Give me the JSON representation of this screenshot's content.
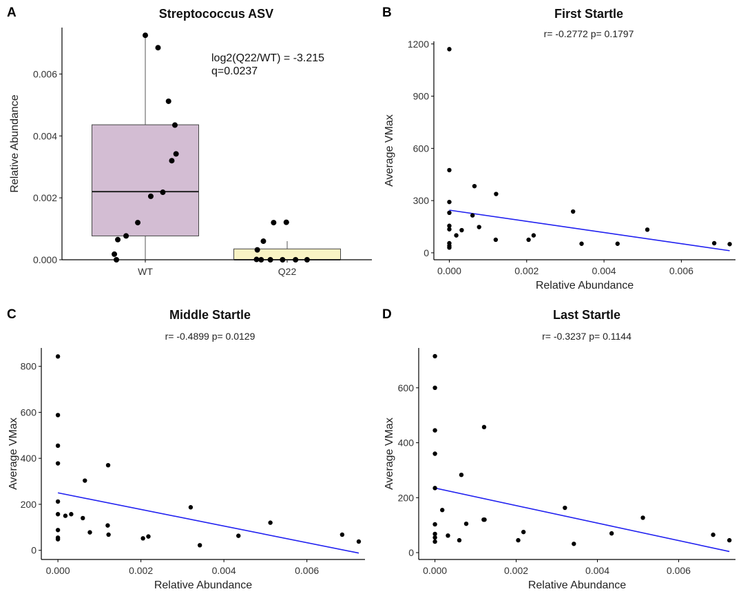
{
  "chart_data": [
    {
      "panel": "A",
      "type": "box",
      "title": "Streptococcus ASV",
      "xlabel": "",
      "ylabel": "Relative Abundance",
      "ylim": [
        0,
        0.0075
      ],
      "yticks": [
        0,
        0.002,
        0.004,
        0.006
      ],
      "ytick_labels": [
        "0.000",
        "0.002",
        "0.004",
        "0.006"
      ],
      "categories": [
        "WT",
        "Q22"
      ],
      "annotation": [
        "log2(Q22/WT) = -3.215",
        "q=0.0237"
      ],
      "colors": {
        "WT": "#d3bdd3",
        "Q22": "#f8f3c4"
      },
      "boxes": [
        {
          "category": "WT",
          "q1": 0.00077,
          "median": 0.0022,
          "q3": 0.00436,
          "whisker_low": 0.0,
          "whisker_high": 0.00725,
          "outliers": []
        },
        {
          "category": "Q22",
          "q1": 0.0,
          "median": 0.0,
          "q3": 0.00035,
          "whisker_low": 0.0,
          "whisker_high": 0.0006,
          "outliers": [
            0.00121
          ]
        }
      ],
      "points": {
        "WT": [
          0.00725,
          0.00685,
          0.00512,
          0.00435,
          0.00342,
          0.0032,
          0.00218,
          0.00205,
          0.0012,
          0.00077,
          0.00065,
          0.00018,
          0.0
        ],
        "Q22": [
          0.00121,
          0.0012,
          0.0006,
          0.00032,
          1e-05,
          0.0,
          0.0,
          0.0,
          0.0,
          0.0
        ]
      }
    },
    {
      "panel": "B",
      "type": "scatter",
      "title": "First Startle",
      "subtitle": "r= -0.2772 p= 0.1797",
      "xlabel": "Relative Abundance",
      "ylabel": "Average VMax",
      "xlim": [
        -0.0004,
        0.0074
      ],
      "ylim": [
        -40,
        1215
      ],
      "xticks": [
        0,
        0.002,
        0.004,
        0.006
      ],
      "xtick_labels": [
        "0.000",
        "0.002",
        "0.004",
        "0.006"
      ],
      "yticks": [
        0,
        300,
        600,
        900,
        1200
      ],
      "ytick_labels": [
        "0",
        "300",
        "600",
        "900",
        "1200"
      ],
      "regression": {
        "x": [
          0,
          0.00725
        ],
        "y": [
          245,
          12
        ],
        "color": "#1f1ff0"
      },
      "points": [
        {
          "x": 0.0,
          "y": 1170
        },
        {
          "x": 0.0,
          "y": 475
        },
        {
          "x": 0.0,
          "y": 292
        },
        {
          "x": 0.0,
          "y": 230
        },
        {
          "x": 0.0,
          "y": 155
        },
        {
          "x": 0.0,
          "y": 135
        },
        {
          "x": 0.0,
          "y": 55
        },
        {
          "x": 0.0,
          "y": 40
        },
        {
          "x": 0.0,
          "y": 30
        },
        {
          "x": 0.00018,
          "y": 100
        },
        {
          "x": 0.00032,
          "y": 130
        },
        {
          "x": 0.0006,
          "y": 215
        },
        {
          "x": 0.00065,
          "y": 383
        },
        {
          "x": 0.00077,
          "y": 148
        },
        {
          "x": 0.0012,
          "y": 75
        },
        {
          "x": 0.00121,
          "y": 338
        },
        {
          "x": 0.00205,
          "y": 75
        },
        {
          "x": 0.00218,
          "y": 100
        },
        {
          "x": 0.0032,
          "y": 237
        },
        {
          "x": 0.00342,
          "y": 52
        },
        {
          "x": 0.00435,
          "y": 52
        },
        {
          "x": 0.00512,
          "y": 133
        },
        {
          "x": 0.00685,
          "y": 55
        },
        {
          "x": 0.00725,
          "y": 50
        }
      ]
    },
    {
      "panel": "C",
      "type": "scatter",
      "title": "Middle Startle",
      "subtitle": "r= -0.4899 p= 0.0129",
      "xlabel": "Relative Abundance",
      "ylabel": "Average VMax",
      "xlim": [
        -0.0004,
        0.0074
      ],
      "ylim": [
        -40,
        880
      ],
      "xticks": [
        0,
        0.002,
        0.004,
        0.006
      ],
      "xtick_labels": [
        "0.000",
        "0.002",
        "0.004",
        "0.006"
      ],
      "yticks": [
        0,
        200,
        400,
        600,
        800
      ],
      "ytick_labels": [
        "0",
        "200",
        "400",
        "600",
        "800"
      ],
      "regression": {
        "x": [
          0,
          0.00725
        ],
        "y": [
          250,
          -12
        ],
        "color": "#1f1ff0"
      },
      "points": [
        {
          "x": 0.0,
          "y": 843
        },
        {
          "x": 0.0,
          "y": 588
        },
        {
          "x": 0.0,
          "y": 455
        },
        {
          "x": 0.0,
          "y": 378
        },
        {
          "x": 0.0,
          "y": 212
        },
        {
          "x": 0.0,
          "y": 157
        },
        {
          "x": 0.0,
          "y": 88
        },
        {
          "x": 0.0,
          "y": 55
        },
        {
          "x": 0.0,
          "y": 48
        },
        {
          "x": 0.00018,
          "y": 150
        },
        {
          "x": 0.00032,
          "y": 157
        },
        {
          "x": 0.0006,
          "y": 140
        },
        {
          "x": 0.00065,
          "y": 303
        },
        {
          "x": 0.00077,
          "y": 78
        },
        {
          "x": 0.0012,
          "y": 108
        },
        {
          "x": 0.00121,
          "y": 370
        },
        {
          "x": 0.00122,
          "y": 68
        },
        {
          "x": 0.00205,
          "y": 52
        },
        {
          "x": 0.00218,
          "y": 60
        },
        {
          "x": 0.0032,
          "y": 187
        },
        {
          "x": 0.00342,
          "y": 22
        },
        {
          "x": 0.00435,
          "y": 63
        },
        {
          "x": 0.00512,
          "y": 120
        },
        {
          "x": 0.00685,
          "y": 68
        },
        {
          "x": 0.00725,
          "y": 38
        }
      ]
    },
    {
      "panel": "D",
      "type": "scatter",
      "title": "Last Startle",
      "subtitle": "r= -0.3237 p= 0.1144",
      "xlabel": "Relative Abundance",
      "ylabel": "Average VMax",
      "xlim": [
        -0.0004,
        0.0074
      ],
      "ylim": [
        -25,
        745
      ],
      "xticks": [
        0,
        0.002,
        0.004,
        0.006
      ],
      "xtick_labels": [
        "0.000",
        "0.002",
        "0.004",
        "0.006"
      ],
      "yticks": [
        0,
        200,
        400,
        600
      ],
      "ytick_labels": [
        "0",
        "200",
        "400",
        "600"
      ],
      "regression": {
        "x": [
          0,
          0.00725
        ],
        "y": [
          235,
          4
        ],
        "color": "#1f1ff0"
      },
      "points": [
        {
          "x": 0.0,
          "y": 715
        },
        {
          "x": 0.0,
          "y": 600
        },
        {
          "x": 0.0,
          "y": 445
        },
        {
          "x": 0.0,
          "y": 360
        },
        {
          "x": 0.0,
          "y": 235
        },
        {
          "x": 0.0,
          "y": 103
        },
        {
          "x": 0.0,
          "y": 68
        },
        {
          "x": 0.0,
          "y": 55
        },
        {
          "x": 0.0,
          "y": 40
        },
        {
          "x": 0.00018,
          "y": 155
        },
        {
          "x": 0.00032,
          "y": 62
        },
        {
          "x": 0.0006,
          "y": 45
        },
        {
          "x": 0.00065,
          "y": 283
        },
        {
          "x": 0.00077,
          "y": 105
        },
        {
          "x": 0.0012,
          "y": 120
        },
        {
          "x": 0.00121,
          "y": 457
        },
        {
          "x": 0.00122,
          "y": 120
        },
        {
          "x": 0.00205,
          "y": 45
        },
        {
          "x": 0.00218,
          "y": 75
        },
        {
          "x": 0.0032,
          "y": 163
        },
        {
          "x": 0.00342,
          "y": 32
        },
        {
          "x": 0.00435,
          "y": 70
        },
        {
          "x": 0.00512,
          "y": 127
        },
        {
          "x": 0.00685,
          "y": 65
        },
        {
          "x": 0.00725,
          "y": 45
        }
      ]
    }
  ]
}
